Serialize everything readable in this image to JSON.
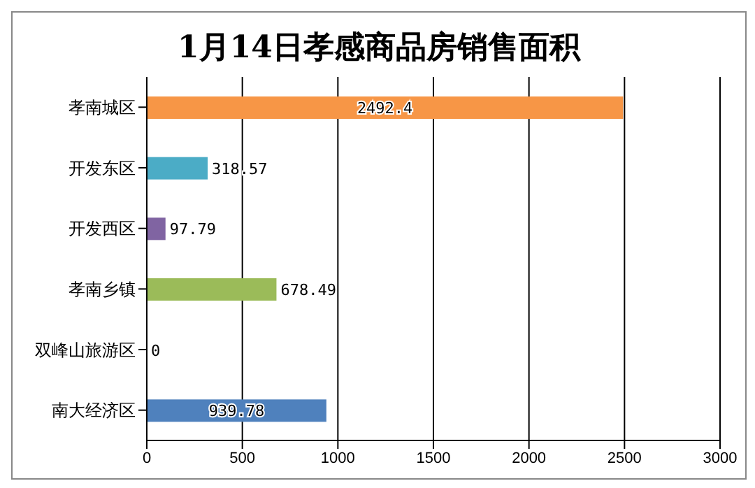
{
  "chart_data": {
    "type": "bar",
    "orientation": "horizontal",
    "title": "1月14日孝感商品房销售面积",
    "categories": [
      "孝南城区",
      "开发东区",
      "开发西区",
      "孝南乡镇",
      "双峰山旅游区",
      "南大经济区"
    ],
    "values": [
      2492.4,
      318.57,
      97.79,
      678.49,
      0,
      939.78
    ],
    "colors": [
      "#f79646",
      "#4bacc6",
      "#8064a2",
      "#9bbb59",
      "#c0504d",
      "#4f81bd"
    ],
    "xlim": [
      0,
      3000
    ],
    "xticks": [
      0,
      500,
      1000,
      1500,
      2000,
      2500,
      3000
    ],
    "grid": "x",
    "data_labels": true
  }
}
